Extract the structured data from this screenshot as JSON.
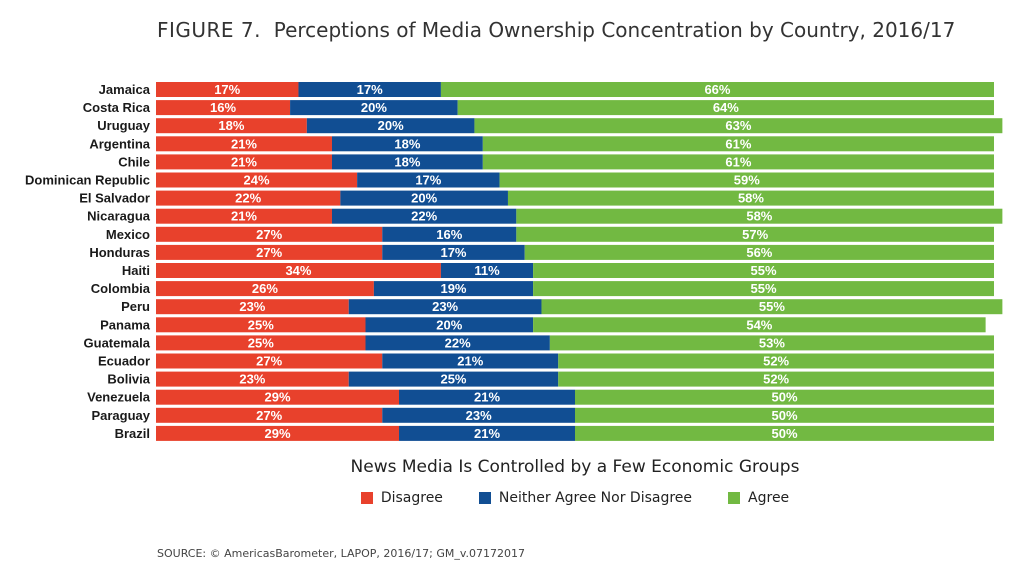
{
  "title": {
    "figure_label": "FIGURE 7.",
    "text": "Perceptions of Media Ownership Concentration by Country, 2016/17"
  },
  "chart_data": {
    "type": "bar",
    "orientation": "horizontal",
    "stacked": true,
    "percent_stacked": true,
    "title": "FIGURE 7. Perceptions of Media Ownership Concentration by Country, 2016/17",
    "xlabel": "News Media Is Controlled by a Few Economic Groups",
    "ylabel": "",
    "xlim": [
      0,
      100
    ],
    "categories": [
      "Jamaica",
      "Costa Rica",
      "Uruguay",
      "Argentina",
      "Chile",
      "Dominican Republic",
      "El Salvador",
      "Nicaragua",
      "Mexico",
      "Honduras",
      "Haiti",
      "Colombia",
      "Peru",
      "Panama",
      "Guatemala",
      "Ecuador",
      "Bolivia",
      "Venezuela",
      "Paraguay",
      "Brazil"
    ],
    "series": [
      {
        "name": "Disagree",
        "color": "#e8412c",
        "values": [
          17,
          16,
          18,
          21,
          21,
          24,
          22,
          21,
          27,
          27,
          34,
          26,
          23,
          25,
          25,
          27,
          23,
          29,
          27,
          29
        ]
      },
      {
        "name": "Neither Agree Nor Disagree",
        "color": "#114e93",
        "values": [
          17,
          20,
          20,
          18,
          18,
          17,
          20,
          22,
          16,
          17,
          11,
          19,
          23,
          20,
          22,
          21,
          25,
          21,
          23,
          21
        ]
      },
      {
        "name": "Agree",
        "color": "#72b942",
        "values": [
          66,
          64,
          63,
          61,
          61,
          59,
          58,
          58,
          57,
          56,
          55,
          55,
          55,
          54,
          53,
          52,
          52,
          50,
          50,
          50
        ]
      }
    ],
    "legend": "bottom-center",
    "grid": false
  },
  "source": "SOURCE: © AmericasBarometer, LAPOP, 2016/17; GM_v.07172017"
}
